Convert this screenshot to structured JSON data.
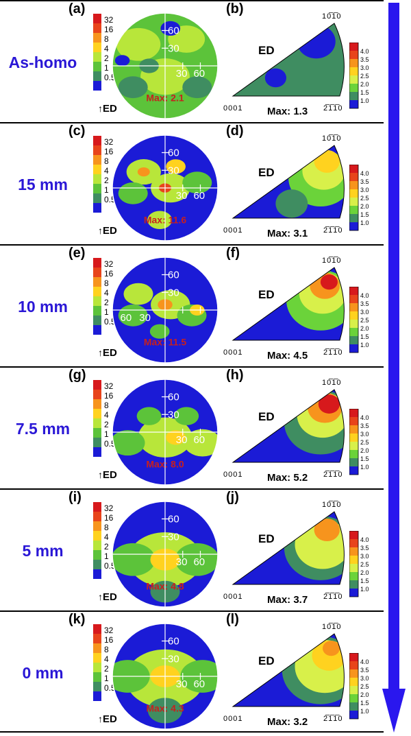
{
  "pf_legend": [
    "32",
    "16",
    "8",
    "4",
    "2",
    "1",
    "0.5"
  ],
  "pf_legend_colors": [
    "#d7191c",
    "#e8441b",
    "#f7941d",
    "#ffd21f",
    "#b8e63a",
    "#5cc33a",
    "#3f8d61",
    "#1b1bd6"
  ],
  "ipf_legend": [
    "4.0",
    "3.5",
    "3.0",
    "2.5",
    "2.0",
    "1.5",
    "1.0"
  ],
  "ipf_legend_colors": [
    "#d7191c",
    "#e8441b",
    "#f7941d",
    "#ffd21f",
    "#d8f04a",
    "#6bd33a",
    "#3f8d61",
    "#1b1bd6"
  ],
  "pf_angle_labels": [
    "60",
    "30",
    "30",
    "60"
  ],
  "ed_label": "ED",
  "ipf_corners": {
    "top": "10̅1̅0",
    "bottom_left": "0001",
    "bottom_right": "2̅1̅1̅0"
  },
  "ipf_corners_display": {
    "top": "10 1 0",
    "bottom_left": "0001",
    "bottom_right": "2 1 1 0"
  },
  "rows": [
    {
      "sample": "As-homo",
      "pf_label": "(a)",
      "ipf_label": "(b)",
      "pf_max": "Max: 2.1",
      "ipf_max": "Max: 1.3"
    },
    {
      "sample": "15 mm",
      "pf_label": "(c)",
      "ipf_label": "(d)",
      "pf_max": "Max: 11.6",
      "ipf_max": "Max: 3.1"
    },
    {
      "sample": "10 mm",
      "pf_label": "(e)",
      "ipf_label": "(f)",
      "pf_max": "Max: 11.5",
      "ipf_max": "Max: 4.5"
    },
    {
      "sample": "7.5 mm",
      "pf_label": "(g)",
      "ipf_label": "(h)",
      "pf_max": "Max: 8.0",
      "ipf_max": "Max: 5.2"
    },
    {
      "sample": "5 mm",
      "pf_label": "(i)",
      "ipf_label": "(j)",
      "pf_max": "Max: 4.8",
      "ipf_max": "Max: 3.7"
    },
    {
      "sample": "0 mm",
      "pf_label": "(k)",
      "ipf_label": "(l)",
      "pf_max": "Max: 4.3",
      "ipf_max": "Max: 3.2"
    }
  ]
}
